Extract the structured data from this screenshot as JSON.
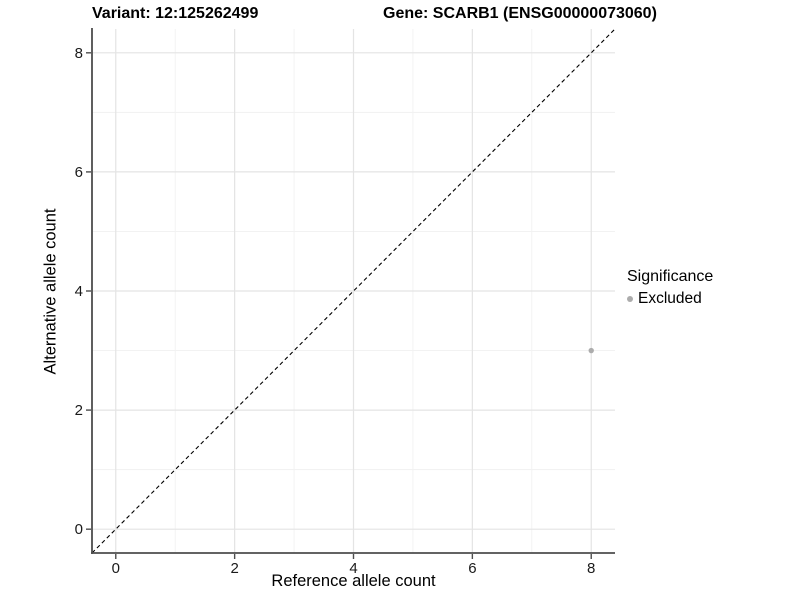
{
  "title": {
    "left": "Variant: 12:125262499",
    "right": "Gene: SCARB1 (ENSG00000073060)"
  },
  "legend": {
    "title": "Significance",
    "entries": [
      {
        "label": "Excluded",
        "color": "#acacac"
      }
    ]
  },
  "colors": {
    "background": "#ffffff",
    "grid_major": "#e4e4e4",
    "grid_minor": "#f1f1f1",
    "axis_line": "#4d4d4d",
    "tick_text": "#1a1a1a",
    "reference_line": "#000000",
    "point": "#acacac"
  },
  "chart_data": {
    "type": "scatter",
    "title_left": "Variant: 12:125262499",
    "title_right": "Gene: SCARB1 (ENSG00000073060)",
    "xlabel": "Reference allele count",
    "ylabel": "Alternative allele count",
    "xlim": [
      -0.4,
      8.4
    ],
    "ylim": [
      -0.4,
      8.4
    ],
    "x_major_ticks": [
      0,
      2,
      4,
      6,
      8
    ],
    "y_major_ticks": [
      0,
      2,
      4,
      6,
      8
    ],
    "x_minor_ticks": [
      1,
      3,
      5,
      7
    ],
    "y_minor_ticks": [
      1,
      3,
      5,
      7
    ],
    "grid": "major+minor",
    "reference_line": {
      "type": "identity y=x",
      "style": "dashed",
      "color": "#000000"
    },
    "series": [
      {
        "name": "Excluded",
        "color": "#acacac",
        "points": [
          {
            "x": 8,
            "y": 3
          }
        ]
      }
    ],
    "legend_position": "right",
    "legend_title": "Significance"
  }
}
